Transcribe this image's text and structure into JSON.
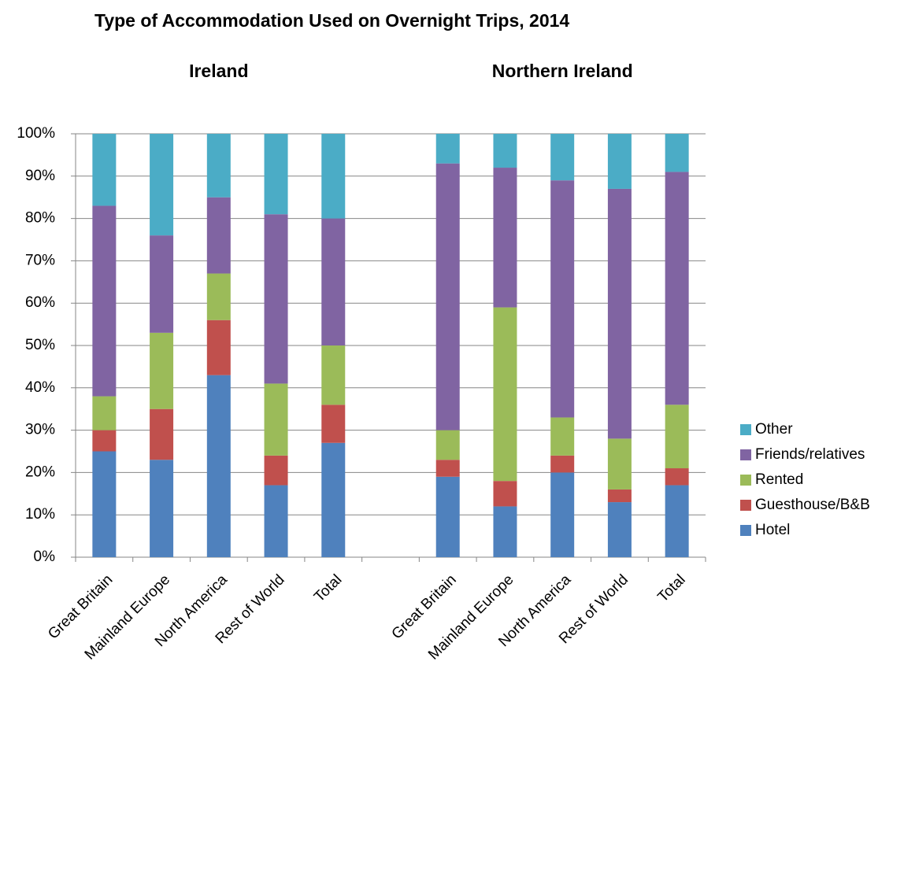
{
  "chart_data": {
    "type": "stacked_bar",
    "title": "Type of Accommodation Used on Overnight Trips, 2014",
    "annotations": [
      "Ireland",
      "Northern Ireland"
    ],
    "categories": [
      "Great Britain",
      "Mainland Europe",
      "North America",
      "Rest of World",
      "Total",
      null,
      "Great Britain",
      "Mainland Europe",
      "North America",
      "Rest of World",
      "Total"
    ],
    "series": [
      {
        "name": "Hotel",
        "color": "#4f81bd",
        "values": [
          25,
          23,
          43,
          17,
          27,
          null,
          19,
          12,
          20,
          13,
          17
        ]
      },
      {
        "name": "Guesthouse/B&B",
        "color": "#c0504d",
        "values": [
          5,
          12,
          13,
          7,
          9,
          null,
          4,
          6,
          4,
          3,
          4
        ]
      },
      {
        "name": "Rented",
        "color": "#9bbb59",
        "values": [
          8,
          18,
          11,
          17,
          14,
          null,
          7,
          41,
          9,
          12,
          15
        ]
      },
      {
        "name": "Friends/relatives",
        "color": "#8064a2",
        "values": [
          45,
          23,
          18,
          40,
          30,
          null,
          63,
          33,
          56,
          59,
          55
        ]
      },
      {
        "name": "Other",
        "color": "#4bacc6",
        "values": [
          17,
          24,
          15,
          19,
          20,
          null,
          7,
          8,
          11,
          13,
          9
        ]
      }
    ],
    "ylim": [
      0,
      100
    ],
    "yticks": [
      {
        "value": 0,
        "label": "0%"
      },
      {
        "value": 10,
        "label": "10%"
      },
      {
        "value": 20,
        "label": "20%"
      },
      {
        "value": 30,
        "label": "30%"
      },
      {
        "value": 40,
        "label": "40%"
      },
      {
        "value": 50,
        "label": "50%"
      },
      {
        "value": 60,
        "label": "60%"
      },
      {
        "value": 70,
        "label": "70%"
      },
      {
        "value": 80,
        "label": "80%"
      },
      {
        "value": 90,
        "label": "90%"
      },
      {
        "value": 100,
        "label": "100%"
      }
    ],
    "grid": true,
    "legend": "right"
  }
}
